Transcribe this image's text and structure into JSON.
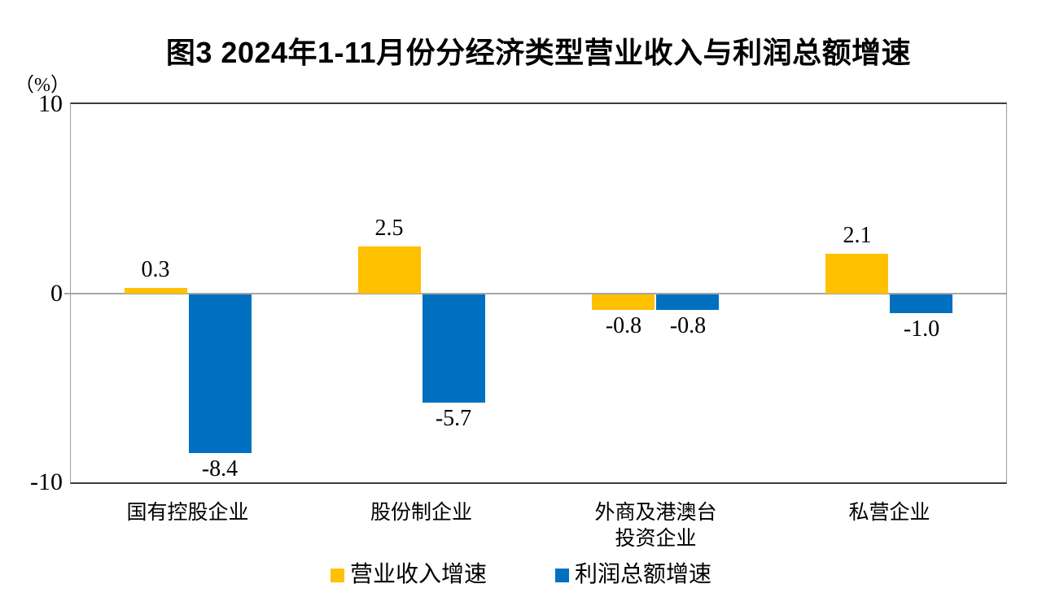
{
  "title": "图3 2024年1-11月份分经济类型营业收入与利润总额增速",
  "y_axis": {
    "unit": "（%）",
    "ticks": [
      10,
      0,
      -10
    ],
    "tick_labels": [
      "10",
      "0",
      "-10"
    ]
  },
  "chart_data": {
    "type": "bar",
    "title": "图3 2024年1-11月份分经济类型营业收入与利润总额增速",
    "categories": [
      "国有控股企业",
      "股份制企业",
      "外商及港澳台\n投资企业",
      "私营企业"
    ],
    "series": [
      {
        "name": "营业收入增速",
        "color": "#FFC000",
        "values": [
          0.3,
          2.5,
          -0.8,
          2.1
        ],
        "labels": [
          "0.3",
          "2.5",
          "-0.8",
          "2.1"
        ]
      },
      {
        "name": "利润总额增速",
        "color": "#0070C0",
        "values": [
          -8.4,
          -5.7,
          -0.8,
          -1.0
        ],
        "labels": [
          "-8.4",
          "-5.7",
          "-0.8",
          "-1.0"
        ]
      }
    ],
    "ylim": [
      -10,
      10
    ],
    "ylabel": "（%）",
    "grid": false,
    "legend_position": "bottom"
  },
  "colors": {
    "revenue_bar": "#FFC000",
    "profit_bar": "#0070C0",
    "zero_line": "#A6A6A6",
    "plot_border": "#3C3C3C"
  },
  "legend": {
    "items": [
      "营业收入增速",
      "利润总额增速"
    ]
  }
}
